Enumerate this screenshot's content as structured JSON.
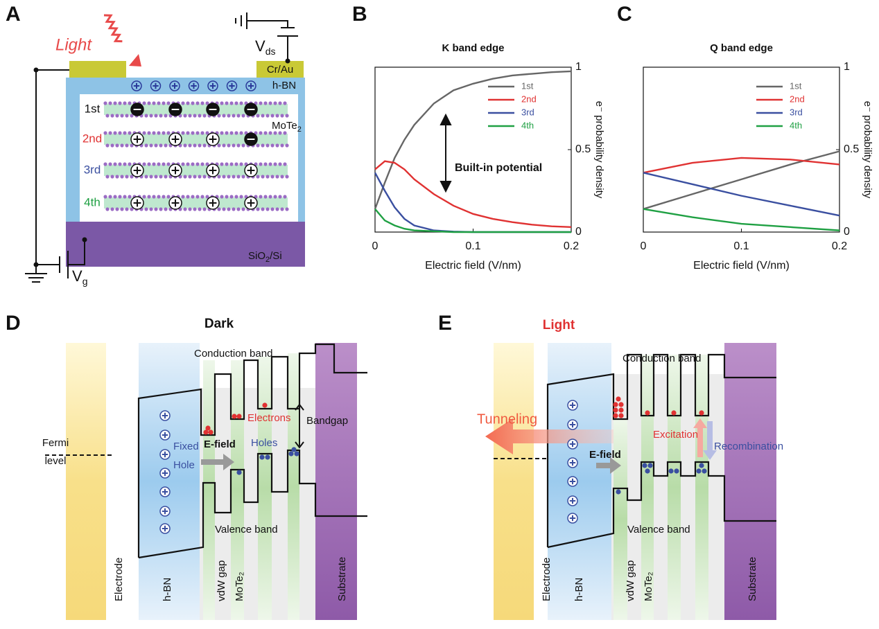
{
  "panel_labels": [
    "A",
    "B",
    "C",
    "D",
    "E"
  ],
  "chart_data": [
    {
      "type": "line",
      "title": "K band edge",
      "xlabel": "Electric field (V/nm)",
      "ylabel": "e⁻ probability density",
      "annotation": "Built-in potential",
      "x": [
        0,
        0.01,
        0.02,
        0.03,
        0.04,
        0.06,
        0.08,
        0.1,
        0.12,
        0.14,
        0.16,
        0.18,
        0.2
      ],
      "series": [
        {
          "name": "1st",
          "color": "#666666",
          "values": [
            0.14,
            0.3,
            0.45,
            0.56,
            0.65,
            0.78,
            0.86,
            0.9,
            0.93,
            0.95,
            0.96,
            0.97,
            0.975
          ]
        },
        {
          "name": "2nd",
          "color": "#e03232",
          "values": [
            0.38,
            0.43,
            0.42,
            0.38,
            0.32,
            0.23,
            0.16,
            0.11,
            0.08,
            0.06,
            0.045,
            0.035,
            0.03
          ]
        },
        {
          "name": "3rd",
          "color": "#3a4fa0",
          "values": [
            0.36,
            0.25,
            0.15,
            0.08,
            0.04,
            0.01,
            0.003,
            0,
            0,
            0,
            0,
            0,
            0
          ]
        },
        {
          "name": "4th",
          "color": "#1fa043",
          "values": [
            0.14,
            0.07,
            0.04,
            0.02,
            0.01,
            0.005,
            0,
            0,
            0,
            0,
            0,
            0,
            0
          ]
        }
      ],
      "xlim": [
        0,
        0.2
      ],
      "xticks": [
        0,
        0.1,
        0.2
      ],
      "ylim": [
        0,
        1
      ],
      "yticks": [
        0,
        0.5,
        1
      ],
      "yaxis_position": "right",
      "legend": "upper right"
    },
    {
      "type": "line",
      "title": "Q band edge",
      "xlabel": "Electric field (V/nm)",
      "ylabel": "e⁻ probability density",
      "x": [
        0,
        0.05,
        0.1,
        0.15,
        0.2
      ],
      "series": [
        {
          "name": "1st",
          "color": "#666666",
          "values": [
            0.14,
            0.23,
            0.32,
            0.41,
            0.49
          ]
        },
        {
          "name": "2nd",
          "color": "#e03232",
          "values": [
            0.36,
            0.42,
            0.45,
            0.44,
            0.41
          ]
        },
        {
          "name": "3rd",
          "color": "#3a4fa0",
          "values": [
            0.36,
            0.29,
            0.22,
            0.16,
            0.1
          ]
        },
        {
          "name": "4th",
          "color": "#1fa043",
          "values": [
            0.14,
            0.09,
            0.05,
            0.03,
            0.01
          ]
        }
      ],
      "xlim": [
        0,
        0.2
      ],
      "xticks": [
        0,
        0.1,
        0.2
      ],
      "ylim": [
        0,
        1
      ],
      "yticks": [
        0,
        0.5,
        1
      ],
      "yaxis_position": "right",
      "legend": "upper right"
    }
  ],
  "panel_a": {
    "light": "Light",
    "vds": "V",
    "vds_sub": "ds",
    "electrode": "Cr/Au",
    "hbn": "h-BN",
    "mote2": "MoTe",
    "mote2_sub": "2",
    "layers": [
      "1st",
      "2nd",
      "3rd",
      "4th"
    ],
    "substrate": "SiO",
    "substrate_sub": "2",
    "substrate_rest": "/Si",
    "vg": "V",
    "vg_sub": "g"
  },
  "panel_d": {
    "title": "Dark",
    "conduction": "Conduction band",
    "electrons": "Electrons",
    "bandgap": "Bandgap",
    "fermi": [
      "Fermi",
      "level"
    ],
    "fixed": "Fixed",
    "hole": "Hole",
    "efield": "E-field",
    "holes": "Holes",
    "valence": "Valence band",
    "columns": [
      "Electrode",
      "h-BN",
      "vdW gap",
      "MoTe₂",
      "Substrate"
    ]
  },
  "panel_e": {
    "title": "Light",
    "conduction": "Conduction band",
    "tunneling": "Tunneling",
    "excitation": "Excitation",
    "recombination": "Recombination",
    "efield": "E-field",
    "valence": "Valence band",
    "columns": [
      "Electrode",
      "h-BN",
      "vdW gap",
      "MoTe₂",
      "Substrate"
    ]
  }
}
